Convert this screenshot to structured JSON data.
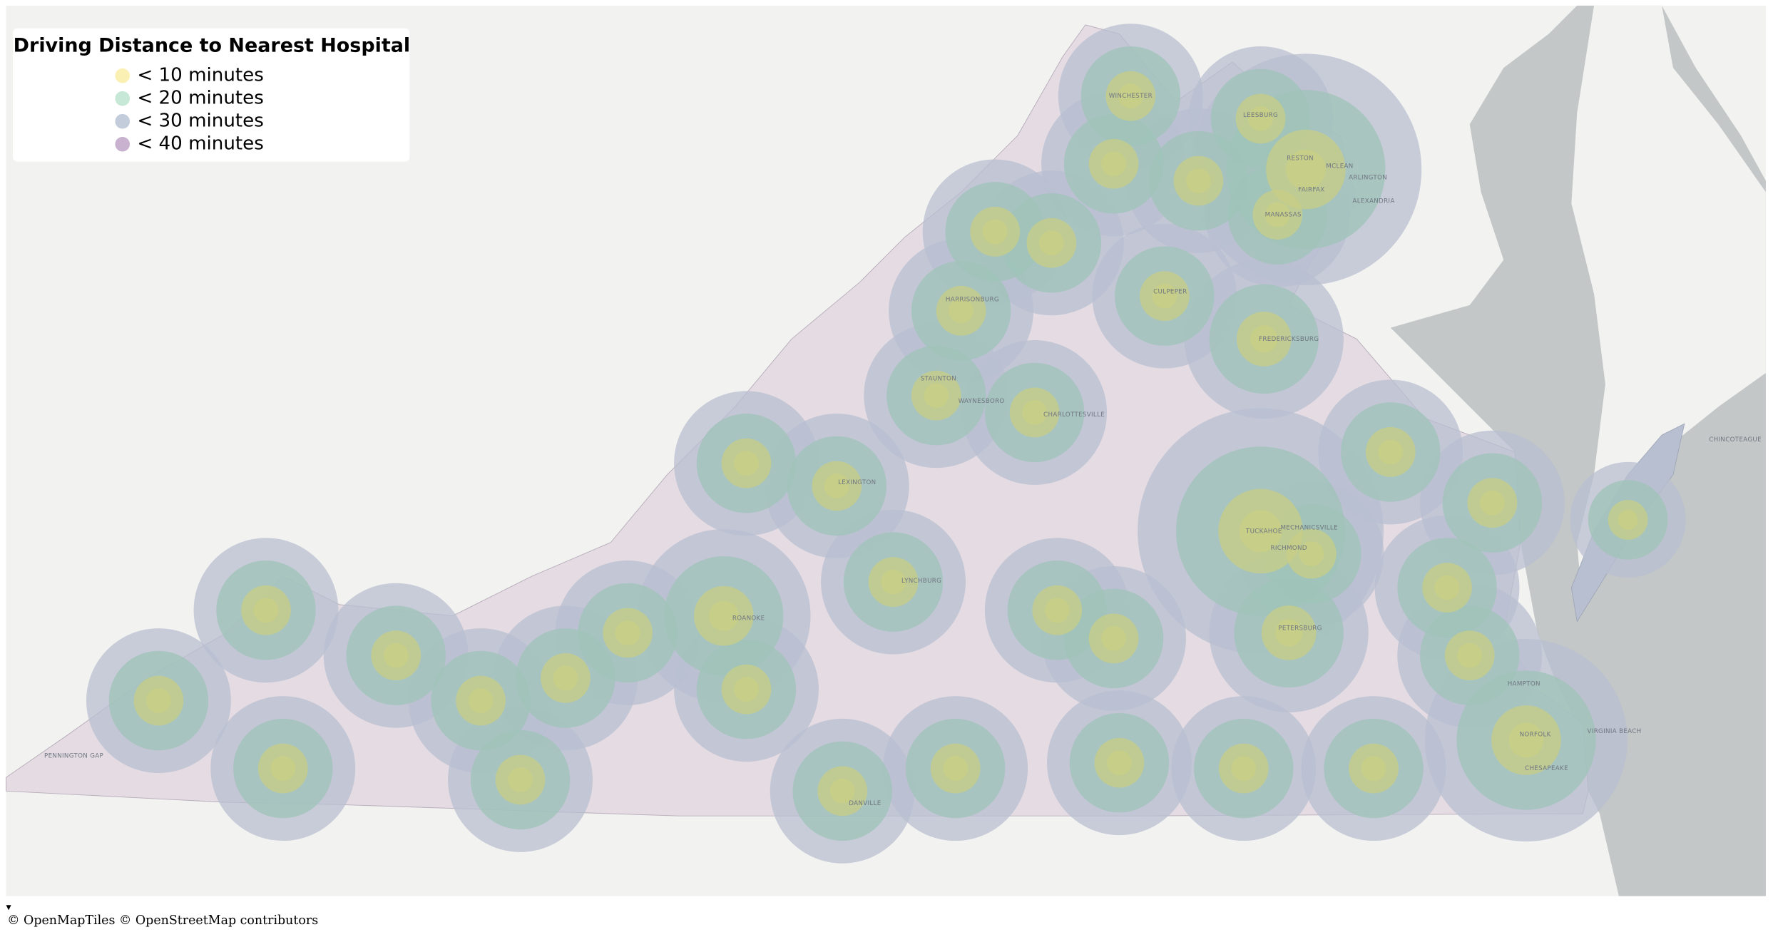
{
  "legend": {
    "title": "Driving Distance to Nearest Hospital",
    "items": [
      {
        "label": "< 10 minutes",
        "color": "#fbf0b3"
      },
      {
        "label": "< 20 minutes",
        "color": "#c7e8d6"
      },
      {
        "label": "< 30 minutes",
        "color": "#c3ccdb"
      },
      {
        "label": "< 40 minutes",
        "color": "#c9b2d0"
      }
    ]
  },
  "places": [
    "WINCHESTER",
    "LEESBURG",
    "RESTON",
    "MCLEAN",
    "ARLINGTON",
    "FAIRFAX",
    "ALEXANDRIA",
    "MANASSAS",
    "CULPEPER",
    "FREDERICKSBURG",
    "HARRISONBURG",
    "STAUNTON",
    "WAYNESBORO",
    "CHARLOTTESVILLE",
    "LEXINGTON",
    "TUCKAHOE",
    "MECHANICSVILLE",
    "RICHMOND",
    "LYNCHBURG",
    "ROANOKE",
    "PETERSBURG",
    "HAMPTON",
    "NORFOLK",
    "VIRGINIA BEACH",
    "CHESAPEAKE",
    "DANVILLE",
    "CHINCOTEAGUE",
    "PENNINGTON GAP"
  ],
  "toggle": "▾",
  "attribution": "© OpenMapTiles © OpenStreetMap contributors"
}
